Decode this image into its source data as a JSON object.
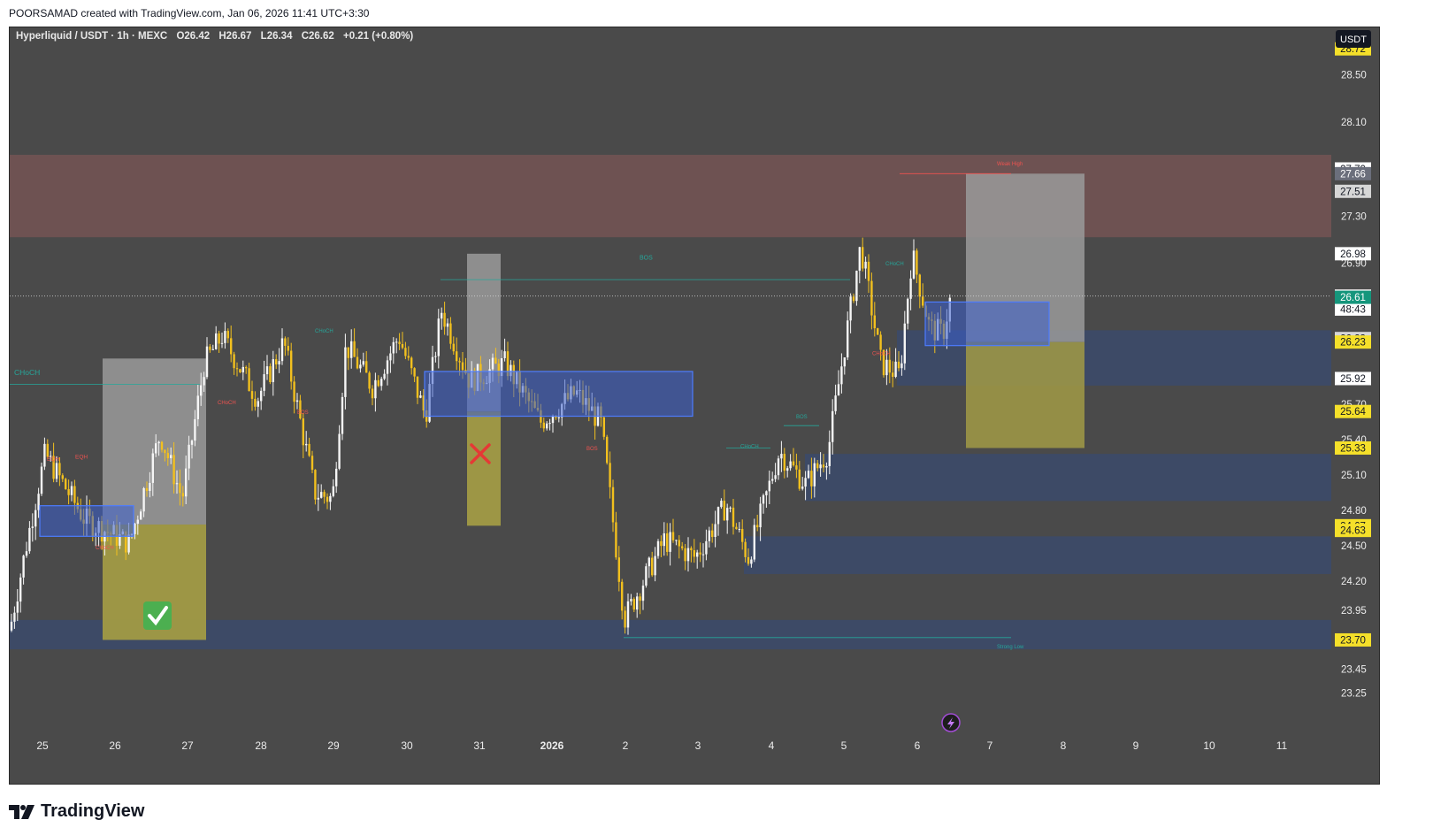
{
  "header": {
    "credit": "POORSAMAD created with TradingView.com, Jan 06, 2026 11:41 UTC+3:30"
  },
  "legend": {
    "symbol": "Hyperliquid / USDT · 1h · MEXC",
    "open": "O26.42",
    "high": "H26.67",
    "low": "L26.34",
    "close": "C26.62",
    "change": "+0.21 (+0.80%)"
  },
  "currency_label": "USDT",
  "brand": "TradingView",
  "colors": {
    "background": "#4a4a4a",
    "candle_up": "#f5f5f5",
    "candle_down": "#f2c01e",
    "demand_zone": "#3d4a66",
    "supply_zone": "#6e5252",
    "order_block": "#3a5fcd",
    "target_box": "#a19a45",
    "stop_box": "#9a9a9a",
    "bos_line": "#26a69a",
    "choch_label": "#ef5350"
  },
  "chart_data": {
    "type": "candlestick",
    "title": "",
    "xlabel": "",
    "ylabel": "",
    "x_ticks": [
      "25",
      "26",
      "27",
      "28",
      "29",
      "30",
      "31",
      "2026",
      "2",
      "3",
      "4",
      "5",
      "6",
      "7",
      "8",
      "9",
      "10",
      "11"
    ],
    "y_ticks": [
      "28.50",
      "28.10",
      "27.30",
      "26.90",
      "25.70",
      "25.40",
      "25.10",
      "24.80",
      "24.50",
      "24.20",
      "23.95",
      "23.45",
      "23.25"
    ],
    "ylim": [
      23.1,
      28.9
    ],
    "price_tags": [
      {
        "label": "28.72",
        "value": 28.72,
        "style": "yellow"
      },
      {
        "label": "27.70",
        "value": 27.7,
        "style": "white"
      },
      {
        "label": "27.66",
        "value": 27.66,
        "style": "grey"
      },
      {
        "label": "27.51",
        "value": 27.51,
        "style": "light"
      },
      {
        "label": "26.98",
        "value": 26.98,
        "style": "white"
      },
      {
        "label": "26.62",
        "value": 26.62,
        "style": "white"
      },
      {
        "label": "48:43",
        "value": 26.51,
        "style": "white"
      },
      {
        "label": "26.61",
        "value": 26.61,
        "style": "green"
      },
      {
        "label": "26.23",
        "value": 26.26,
        "style": "light"
      },
      {
        "label": "26.23",
        "value": 26.23,
        "style": "yellow"
      },
      {
        "label": "25.92",
        "value": 25.92,
        "style": "white"
      },
      {
        "label": "25.64",
        "value": 25.64,
        "style": "yellow"
      },
      {
        "label": "25.33",
        "value": 25.33,
        "style": "yellow"
      },
      {
        "label": "24.67",
        "value": 24.67,
        "style": "yellow"
      },
      {
        "label": "24.63",
        "value": 24.63,
        "style": "yellow"
      },
      {
        "label": "23.70",
        "value": 23.7,
        "style": "yellow"
      }
    ],
    "current_price": 26.62,
    "last_ohlc": {
      "open": 26.42,
      "high": 26.67,
      "low": 26.34,
      "close": 26.62
    },
    "annotations": [
      "CHoCH",
      "EQH",
      "BOS",
      "Weak High",
      "Strong Low"
    ],
    "zones": [
      {
        "type": "supply",
        "from": 27.12,
        "to": 27.82
      },
      {
        "type": "demand",
        "from": 25.86,
        "to": 26.33
      },
      {
        "type": "demand",
        "from": 24.88,
        "to": 25.28
      },
      {
        "type": "demand",
        "from": 24.26,
        "to": 24.58
      },
      {
        "type": "demand",
        "from": 23.62,
        "to": 23.87
      }
    ]
  }
}
